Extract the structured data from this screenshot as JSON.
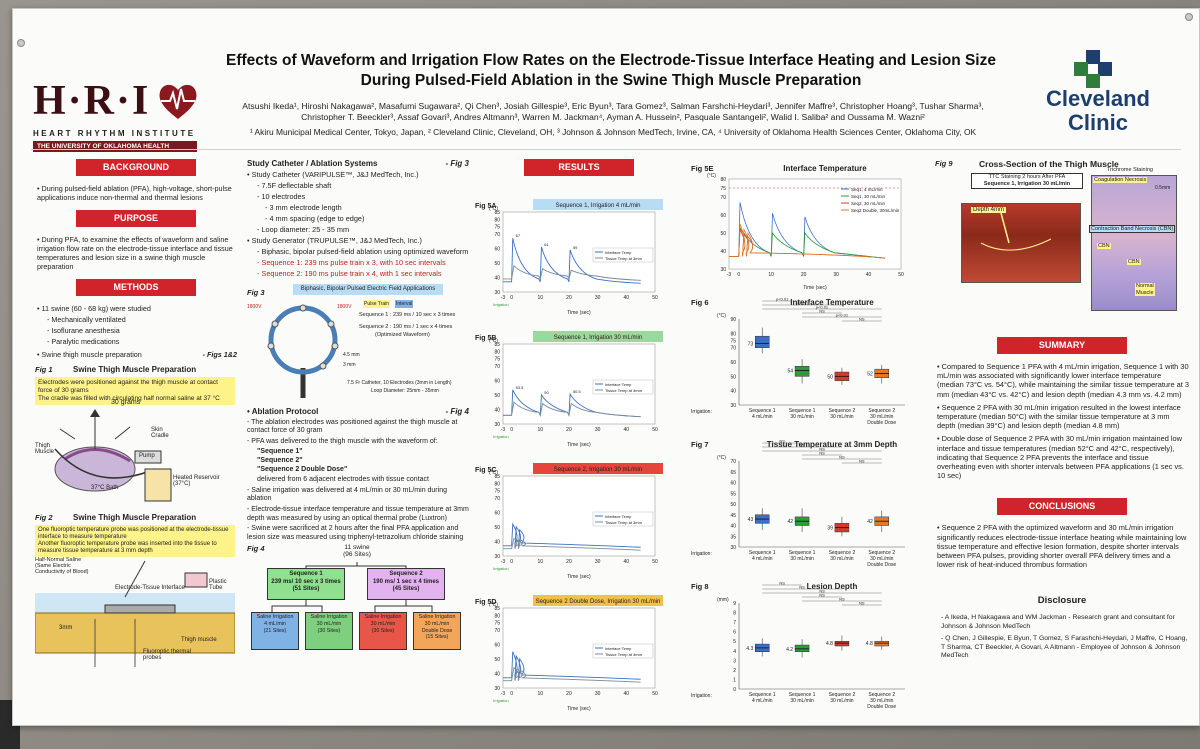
{
  "poster": {
    "title_line1": "Effects of Waveform and Irrigation Flow Rates on the Electrode-Tissue Interface Heating and Lesion Size",
    "title_line2": "During Pulsed-Field Ablation in the Swine Thigh Muscle Preparation",
    "authors_line1": "Atsushi Ikeda¹, Hiroshi Nakagawa², Masafumi Sugawara², Qi Chen³, Josiah Gillespie³, Eric Byun³, Tara Gomez³, Salman Farshchi-Heydari³, Jennifer Maffre³, Christopher Hoang³, Tushar Sharma³,",
    "authors_line2": "Christopher T. Beeckler³, Assaf Govari³, Andres Altmann³, Warren M. Jackman⁴, Ayman A. Hussein², Pasquale Santangeli², Walid I. Saliba² and Oussama M. Wazni²",
    "affiliations": "¹ Akiru Municipal Medical Center, Tokyo, Japan, ² Cleveland Clinic, Cleveland, OH, ³ Johnson & Johnson MedTech, Irvine, CA, ⁴ University of Oklahoma Health Sciences Center, Oklahoma City, OK"
  },
  "logos": {
    "hri_letters": "H·R·I",
    "hri_sub": "HEART RHYTHM INSTITUTE",
    "hri_bar": "THE UNIVERSITY OF OKLAHOMA HEALTH SCIENCES CENTER",
    "cc_line1": "Cleveland",
    "cc_line2": "Clinic"
  },
  "colors": {
    "banner_red": "#d0242a",
    "brand_navy": "#1c3f6e",
    "hri_maroon": "#7a1a1f",
    "seq_blue": "#3a6fc4",
    "seq_green": "#2f9a3a",
    "seq_red": "#d23a2a",
    "seq_orange": "#e07a28"
  },
  "background": {
    "heading": "BACKGROUND",
    "text": "During pulsed-field ablation (PFA), high-voltage, short-pulse applications induce non-thermal and thermal lesions"
  },
  "purpose": {
    "heading": "PURPOSE",
    "text": "During PFA, to examine the effects of waveform and saline irrigation flow rate on the electrode-tissue interface and tissue temperatures and lesion size in a swine thigh muscle preparation"
  },
  "methods": {
    "heading": "METHODS",
    "item1": "11 swine (60 - 68 kg) were studied",
    "sub1": "- Mechanically ventilated",
    "sub2": "- Isoflurane anesthesia",
    "sub3": "- Paralytic medications",
    "item2": "Swine thigh muscle preparation",
    "item2_ref": "- Figs 1&2"
  },
  "fig1": {
    "label": "Fig 1",
    "title": "Swine Thigh Muscle Preparation",
    "note": "Electrodes were positioned against the thigh muscle at contact force of 30 grams\nThe cradle was filled with circulating half normal saline at 37 °C",
    "force": "30 grams",
    "lbl_muscle": "Thigh Muscle",
    "lbl_skin": "Skin Cradle",
    "lbl_pump": "Pump",
    "lbl_reservoir": "Heated Reservoir (37°C)",
    "lbl_bath": "37°C Bath"
  },
  "fig2": {
    "label": "Fig 2",
    "title": "Swine Thigh Muscle Preparation",
    "note": "One fluoroptic temperature probe was positioned at the electrode-tissue interface to measure temperature\nAnother fluoroptic temperature probe was inserted into the tissue to measure tissue temperature at 3 mm depth",
    "lbl_saline": "Half-Normal Saline (Same Electric Conductivity of Blood)",
    "lbl_interface": "Electrode-Tissue Interface",
    "lbl_plastic": "Plastic Tube",
    "lbl_3mm": "3mm",
    "lbl_probes": "Fluoroptic thermal probes",
    "lbl_muscle": "Thigh muscle"
  },
  "catheter": {
    "heading": "Study Catheter / Ablation Systems",
    "fig_ref": "- Fig 3",
    "c1": "Study Catheter (VARIPULSE™, J&J MedTech, Inc.)",
    "c1a": "- 7.5F deflectable shaft",
    "c1b": "- 10 electrodes",
    "c1c": "- 3 mm electrode length",
    "c1d": "- 4 mm spacing (edge to edge)",
    "c1e": "- Loop diameter: 25 - 35 mm",
    "c2": "Study Generator (TRUPULSE™, J&J MedTech, Inc.)",
    "c2a": "- Biphasic, bipolar pulsed-field ablation using optimized waveform",
    "seq1": "- Sequence 1: 239 ms pulse train x 3, with 10 sec intervals",
    "seq2": "- Sequence 2: 190 ms pulse train x 4, with 1 sec intervals"
  },
  "fig3": {
    "label": "Fig 3",
    "title": "Biphasic, Bipolar Pulsed Electric Field Applications",
    "pulse_train": "Pulse Train",
    "interval": "Interval",
    "v1": "1800V",
    "v2": "1800V",
    "seq1": "Sequence 1 : 239 ms / 10 sec x 3 times",
    "seq2": "Sequence 2 : 190 ms / 1 sec x 4 times",
    "seq2_note": "(Optimized Waveform)",
    "d1": "4.5 mm",
    "d2": "3 mm",
    "cath1": "7.5 Fr Catheter, 10 Electrodes (3mm in Length)",
    "cath2": "Loop Diameter: 25mm - 35mm"
  },
  "protocol": {
    "heading": "Ablation Protocol",
    "fig_ref": "- Fig 4",
    "p1": "The ablation electrodes was positioned against the thigh muscle at contact force of 30 gram",
    "p2": "PFA was delivered to the thigh muscle with the waveform of:",
    "s1": "\"Sequence 1\"",
    "s2": "\"Sequence 2\"",
    "s3": "\"Sequence 2 Double Dose\"",
    "p2b": "delivered from 6 adjacent electrodes with tissue contact",
    "p3": "Saline irrigation was delivered at 4 mL/min or 30 mL/min during ablation",
    "p4": "Electrode-tissue interface temperature and tissue temperature at 3mm depth was measured by using an optical thermal probe (Luxtron)",
    "p5": "Swine were sacrificed at 2 hours after the final PFA application and lesion size was measured using triphenyl-tetrazolium chloride staining"
  },
  "fig4": {
    "label": "Fig 4",
    "top1": "11 swine",
    "top2": "(96 Sites)",
    "a_title": "Sequence 1",
    "a_sub": "239 ms/ 10 sec x 3 times",
    "a_sites": "(51 Sites)",
    "b_title": "Sequence 2",
    "b_sub": "190 ms/ 1 sec x 4 times",
    "b_sites": "(45 Sites)",
    "leaves": [
      {
        "l1": "Saline Irrigation",
        "l2": "4 mL/min",
        "l3": "(21 Sites)",
        "color": "#7fb3e6"
      },
      {
        "l1": "Saline Irrigation",
        "l2": "30 mL/min",
        "l3": "(30 Sites)",
        "color": "#7ed07e"
      },
      {
        "l1": "Saline Irrigation",
        "l2": "30 mL/min",
        "l3": "(30 Sites)",
        "color": "#e8564a"
      },
      {
        "l1": "Saline Irrigation",
        "l2": "30 mL/min",
        "l3": "Double Dose",
        "l4": "(15 Sites)",
        "color": "#f3a65a"
      }
    ]
  },
  "results": {
    "heading": "RESULTS"
  },
  "fig5": [
    {
      "label": "Fig 5A",
      "title": "Sequence 1, Irrigation 4 mL/min",
      "color": "#b9dcf5",
      "pk1": "67",
      "pk2": "61",
      "pk3": "59"
    },
    {
      "label": "Fig 5B",
      "title": "Sequence 1, Irrigation 30 mL/min",
      "color": "#9bd89b",
      "pk1": "53.5",
      "pk2": "50",
      "pk3": "50.5"
    },
    {
      "label": "Fig 5C",
      "title": "Sequence 2, Irrigation 30 mL/min",
      "color": "#e5463c",
      "pk1": "",
      "pk2": "",
      "pk3": ""
    },
    {
      "label": "Fig 5D",
      "title": "Sequence 2 Double Dose, Irrigation 30 mL/min",
      "color": "#f3c04a",
      "pk1": "",
      "pk2": "",
      "pk3": ""
    }
  ],
  "fig5_common": {
    "yunit": "(°C)",
    "ticks_y": [
      "30",
      "40",
      "50",
      "60",
      "70",
      "75",
      "80",
      "85"
    ],
    "ticks_x": [
      "-3",
      "0",
      "10",
      "20",
      "30",
      "40",
      "50"
    ],
    "xlabel": "Time (sec)",
    "leg1": "Interface Temp",
    "leg2": "Tissue Temp at 3mm",
    "irr": "Irrigation"
  },
  "fig5e": {
    "label": "Fig 5E",
    "title": "Interface Temperature",
    "yunit": "(°C)",
    "ticks_y": [
      "30",
      "40",
      "50",
      "60",
      "70",
      "75",
      "80"
    ],
    "ticks_x": [
      "-3",
      "0",
      "10",
      "20",
      "30",
      "40",
      "50"
    ],
    "xlabel": "Time (sec)",
    "legend": [
      "Seq1, 4 mL/min",
      "Seq1, 30 mL/min",
      "Seq2, 30 mL/min",
      "Seq2 Double, 30mL/min"
    ]
  },
  "boxplots": [
    {
      "label": "Fig 6",
      "title": "Interface Temperature",
      "yunit": "(°C)",
      "ticks": [
        "30",
        "40",
        "50",
        "60",
        "70",
        "75",
        "80",
        "90"
      ],
      "medians": [
        "73",
        "54",
        "50",
        "52"
      ],
      "stats": [
        "p<0.01",
        "p<0.01",
        "p<0.01",
        "NS",
        "p<0.01",
        "NS"
      ]
    },
    {
      "label": "Fig 7",
      "title": "Tissue Temperature at 3mm Depth",
      "yunit": "(°C)",
      "ticks": [
        "30",
        "35",
        "40",
        "45",
        "50",
        "55",
        "60",
        "65",
        "70"
      ],
      "medians": [
        "43",
        "42",
        "39",
        "42"
      ],
      "stats": [
        "NS",
        "NS",
        "NS",
        "NS",
        "NS",
        "NS"
      ]
    },
    {
      "label": "Fig 8",
      "title": "Lesion Depth",
      "yunit": "(mm)",
      "ticks": [
        "0",
        "1",
        "2",
        "3",
        "4",
        "5",
        "6",
        "7",
        "8",
        "9"
      ],
      "medians": [
        "4.3",
        "4.2",
        "4.8",
        "4.8"
      ],
      "stats": [
        "NS",
        "NS",
        "NS",
        "NS",
        "NS",
        "NS"
      ]
    }
  ],
  "box_xlabels": {
    "irr": "Irrigation:",
    "g1a": "Sequence 1",
    "g1b": "4 mL/min",
    "g2a": "Sequence 1",
    "g2b": "30 mL/min",
    "g3a": "Sequence 2",
    "g3b": "30 mL/min",
    "g4a": "Sequence 2",
    "g4b": "30 mL/min",
    "g4c": "Double Dose"
  },
  "fig9": {
    "label": "Fig 9",
    "title": "Cross-Section of the Thigh Muscle",
    "ttc1": "TTC Staining 2 hours After PFA",
    "ttc2": "Sequence 1, Irrigation 30 mL/min",
    "trichrome": "Trichrome Staining",
    "coag": "Coagulation Necrosis",
    "scale": "0.5mm",
    "depth": "Depth 4mm",
    "cbn": "Contraction Band Necrosis (CBN)",
    "cbn1": "CBN",
    "cbn2": "CBN",
    "normal1": "Normal",
    "normal2": "Muscle"
  },
  "summary": {
    "heading": "SUMMARY",
    "b1": "Compared to Sequence 1 PFA with 4 mL/min irrigation, Sequence 1 with 30 mL/min was associated with significantly lower interface temperature (median 73°C vs. 54°C), while maintaining the similar tissue temperature at 3 mm (median 43°C vs. 42°C) and lesion depth (median 4.3 mm vs. 4.2 mm)",
    "b2": "Sequence 2 PFA with 30 mL/min irrigation resulted in the lowest interface temperature (median 50°C) with the similar tissue temperature at 3 mm depth (median 39°C) and lesion depth (median 4.8 mm)",
    "b3": "Double dose of Sequence 2 PFA with 30 mL/min irrigation maintained low interface and tissue temperatures (median 52°C and 42°C, respectively), indicating that Sequence 2 PFA prevents the interface and tissue overheating even with shorter intervals between PFA applications (1 sec vs. 10 sec)"
  },
  "conclusions": {
    "heading": "CONCLUSIONS",
    "b1": "Sequence 2 PFA with the optimized waveform and 30 mL/min irrigation significantly reduces electrode-tissue interface heating while maintaining low tissue temperature and effective lesion formation, despite shorter intervals between PFA pulses, providing shorter overall PFA delivery times and a lower risk of heat-induced thrombus formation"
  },
  "disclosure": {
    "heading": "Disclosure",
    "d1": "- A Ikeda, H Nakagawa and WM Jackman - Research grant and consultant for Johnson & Johnson MedTech",
    "d2": "- Q Chen, J Gillespie, E Byun, T Gomez, S Farashchi-Heydari, J Maffre, C Hoang, T Sharma, CT Beeckler, A Govari, A Altmann - Employee of Johnson & Johnson MedTech"
  }
}
